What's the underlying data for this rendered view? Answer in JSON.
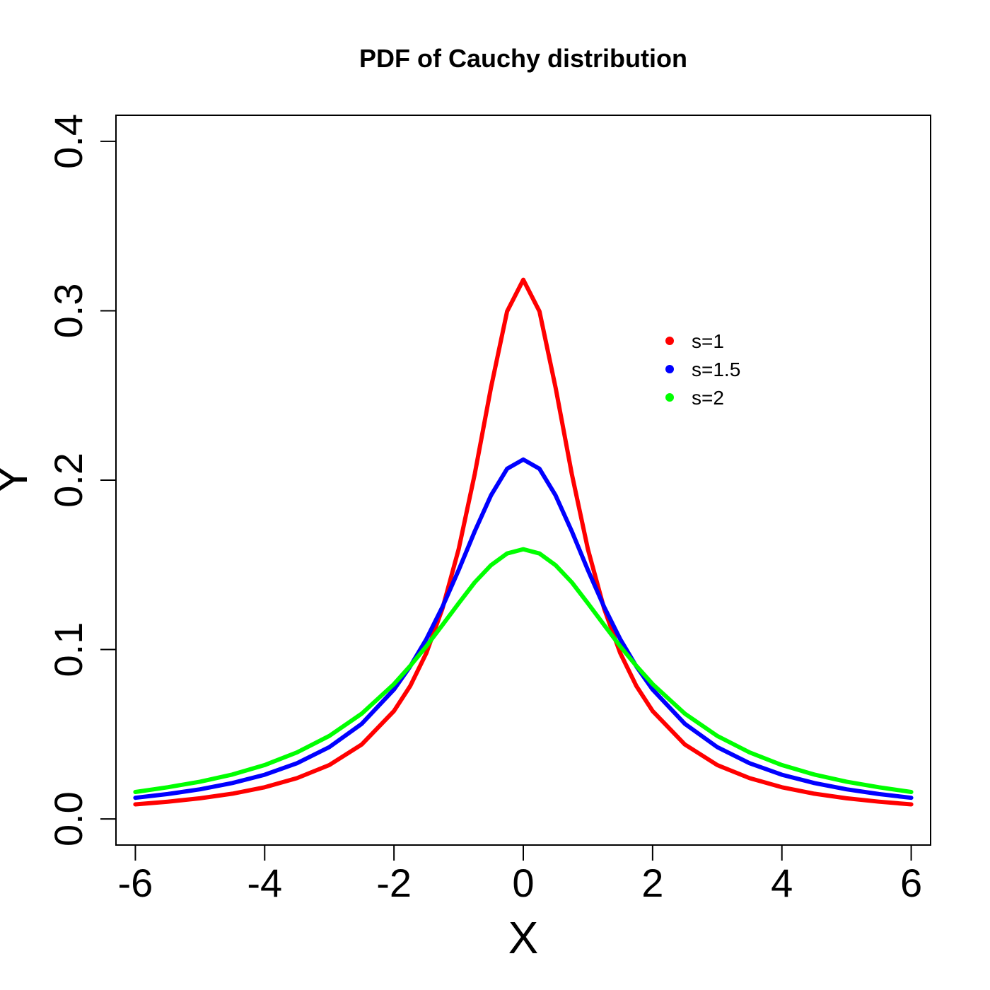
{
  "chart_data": {
    "type": "line",
    "title": "PDF of Cauchy distribution",
    "xlabel": "X",
    "ylabel": "Y",
    "xlim": [
      -6.3,
      6.3
    ],
    "ylim": [
      -0.0154,
      0.4154
    ],
    "x_ticks": [
      -6,
      -4,
      -2,
      0,
      2,
      4,
      6
    ],
    "x_tick_labels": [
      "-6",
      "-4",
      "-2",
      "0",
      "2",
      "4",
      "6"
    ],
    "y_ticks": [
      0.0,
      0.1,
      0.2,
      0.3,
      0.4
    ],
    "y_tick_labels": [
      "0.0",
      "0.1",
      "0.2",
      "0.3",
      "0.4"
    ],
    "grid": false,
    "legend_position": "top-right",
    "x": [
      -6,
      -5.5,
      -5,
      -4.5,
      -4,
      -3.5,
      -3,
      -2.5,
      -2,
      -1.75,
      -1.5,
      -1.25,
      -1,
      -0.75,
      -0.5,
      -0.25,
      0,
      0.25,
      0.5,
      0.75,
      1,
      1.25,
      1.5,
      1.75,
      2,
      2.5,
      3,
      3.5,
      4,
      4.5,
      5,
      5.5,
      6
    ],
    "series": [
      {
        "name": "s=1",
        "color": "#ff0000",
        "values": [
          0.0086,
          0.0102,
          0.0122,
          0.0149,
          0.0187,
          0.0241,
          0.0318,
          0.0439,
          0.0637,
          0.0784,
          0.0979,
          0.1242,
          0.1592,
          0.2037,
          0.2546,
          0.2996,
          0.3183,
          0.2996,
          0.2546,
          0.2037,
          0.1592,
          0.1242,
          0.0979,
          0.0784,
          0.0637,
          0.0439,
          0.0318,
          0.0241,
          0.0187,
          0.0149,
          0.0122,
          0.0102,
          0.0086
        ]
      },
      {
        "name": "s=1.5",
        "color": "#0000ff",
        "values": [
          0.0125,
          0.0147,
          0.0175,
          0.0212,
          0.0261,
          0.0329,
          0.0424,
          0.0561,
          0.0764,
          0.09,
          0.1061,
          0.1252,
          0.1469,
          0.1698,
          0.191,
          0.2067,
          0.2122,
          0.2067,
          0.191,
          0.1698,
          0.1469,
          0.1252,
          0.1061,
          0.09,
          0.0764,
          0.0561,
          0.0424,
          0.0329,
          0.0261,
          0.0212,
          0.0175,
          0.0147,
          0.0125
        ]
      },
      {
        "name": "s=2",
        "color": "#00ff00",
        "values": [
          0.0159,
          0.0187,
          0.022,
          0.0262,
          0.0318,
          0.0393,
          0.049,
          0.0621,
          0.0796,
          0.0903,
          0.1019,
          0.1145,
          0.1273,
          0.1397,
          0.1498,
          0.1567,
          0.1592,
          0.1567,
          0.1498,
          0.1397,
          0.1273,
          0.1145,
          0.1019,
          0.0903,
          0.0796,
          0.0621,
          0.049,
          0.0393,
          0.0318,
          0.0262,
          0.022,
          0.0187,
          0.0159
        ]
      }
    ]
  }
}
